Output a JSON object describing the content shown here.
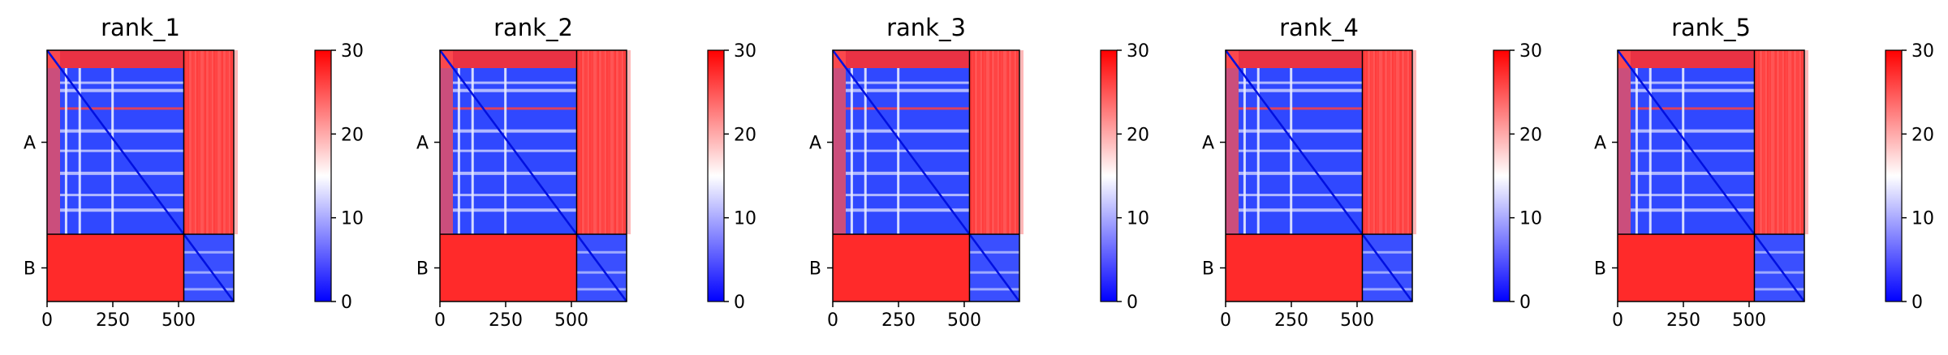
{
  "chart_data": [
    {
      "type": "heatmap",
      "title": "rank_1",
      "x_ticks": [
        "0",
        "250",
        "500"
      ],
      "y_ticks": [
        "A",
        "B"
      ],
      "colorbar": {
        "ticks": [
          "0",
          "10",
          "20",
          "30"
        ],
        "range": [
          0,
          30
        ],
        "colors": [
          "#0000ff",
          "#ffffff",
          "#ff0000"
        ]
      }
    },
    {
      "type": "heatmap",
      "title": "rank_2",
      "x_ticks": [
        "0",
        "250",
        "500"
      ],
      "y_ticks": [
        "A",
        "B"
      ],
      "colorbar": {
        "ticks": [
          "0",
          "10",
          "20",
          "30"
        ],
        "range": [
          0,
          30
        ],
        "colors": [
          "#0000ff",
          "#ffffff",
          "#ff0000"
        ]
      }
    },
    {
      "type": "heatmap",
      "title": "rank_3",
      "x_ticks": [
        "0",
        "250",
        "500"
      ],
      "y_ticks": [
        "A",
        "B"
      ],
      "colorbar": {
        "ticks": [
          "0",
          "10",
          "20",
          "30"
        ],
        "range": [
          0,
          30
        ],
        "colors": [
          "#0000ff",
          "#ffffff",
          "#ff0000"
        ]
      }
    },
    {
      "type": "heatmap",
      "title": "rank_4",
      "x_ticks": [
        "0",
        "250",
        "500"
      ],
      "y_ticks": [
        "A",
        "B"
      ],
      "colorbar": {
        "ticks": [
          "0",
          "10",
          "20",
          "30"
        ],
        "range": [
          0,
          30
        ],
        "colors": [
          "#0000ff",
          "#ffffff",
          "#ff0000"
        ]
      }
    },
    {
      "type": "heatmap",
      "title": "rank_5",
      "x_ticks": [
        "0",
        "250",
        "500"
      ],
      "y_ticks": [
        "A",
        "B"
      ],
      "colorbar": {
        "ticks": [
          "0",
          "10",
          "20",
          "30"
        ],
        "range": [
          0,
          30
        ],
        "colors": [
          "#0000ff",
          "#ffffff",
          "#ff0000"
        ]
      }
    }
  ]
}
